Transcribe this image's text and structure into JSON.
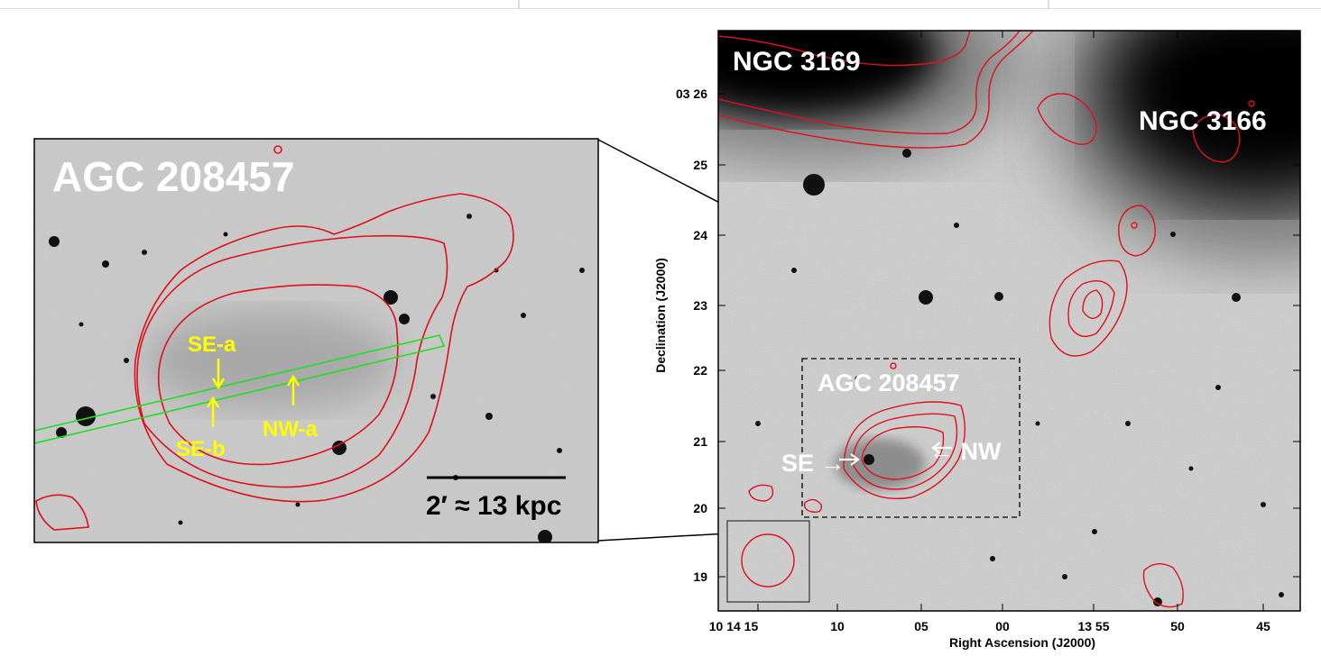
{
  "inset": {
    "title": "AGC 208457",
    "labels": {
      "se_a": "SE-a",
      "se_b": "SE-b",
      "nw_a": "NW-a"
    },
    "scale_bar": "2′ ≈ 13 kpc"
  },
  "main": {
    "galaxies": {
      "ngc3169": "NGC 3169",
      "ngc3166": "NGC 3166",
      "agc": "AGC 208457"
    },
    "markers": {
      "se": "SE →",
      "nw": "← NW"
    },
    "y_axis": {
      "label": "Declination (J2000)",
      "ticks": [
        "03 26",
        "25",
        "24",
        "23",
        "22",
        "21",
        "20",
        "19"
      ]
    },
    "x_axis": {
      "label": "Right Ascension (J2000)",
      "ticks": [
        "10 14 15",
        "10",
        "05",
        "00",
        "13 55",
        "50",
        "45"
      ]
    }
  },
  "colors": {
    "contour": "#e0101a",
    "slit": "#22dd22",
    "annotation": "#ffff00",
    "label": "#ffffff"
  }
}
